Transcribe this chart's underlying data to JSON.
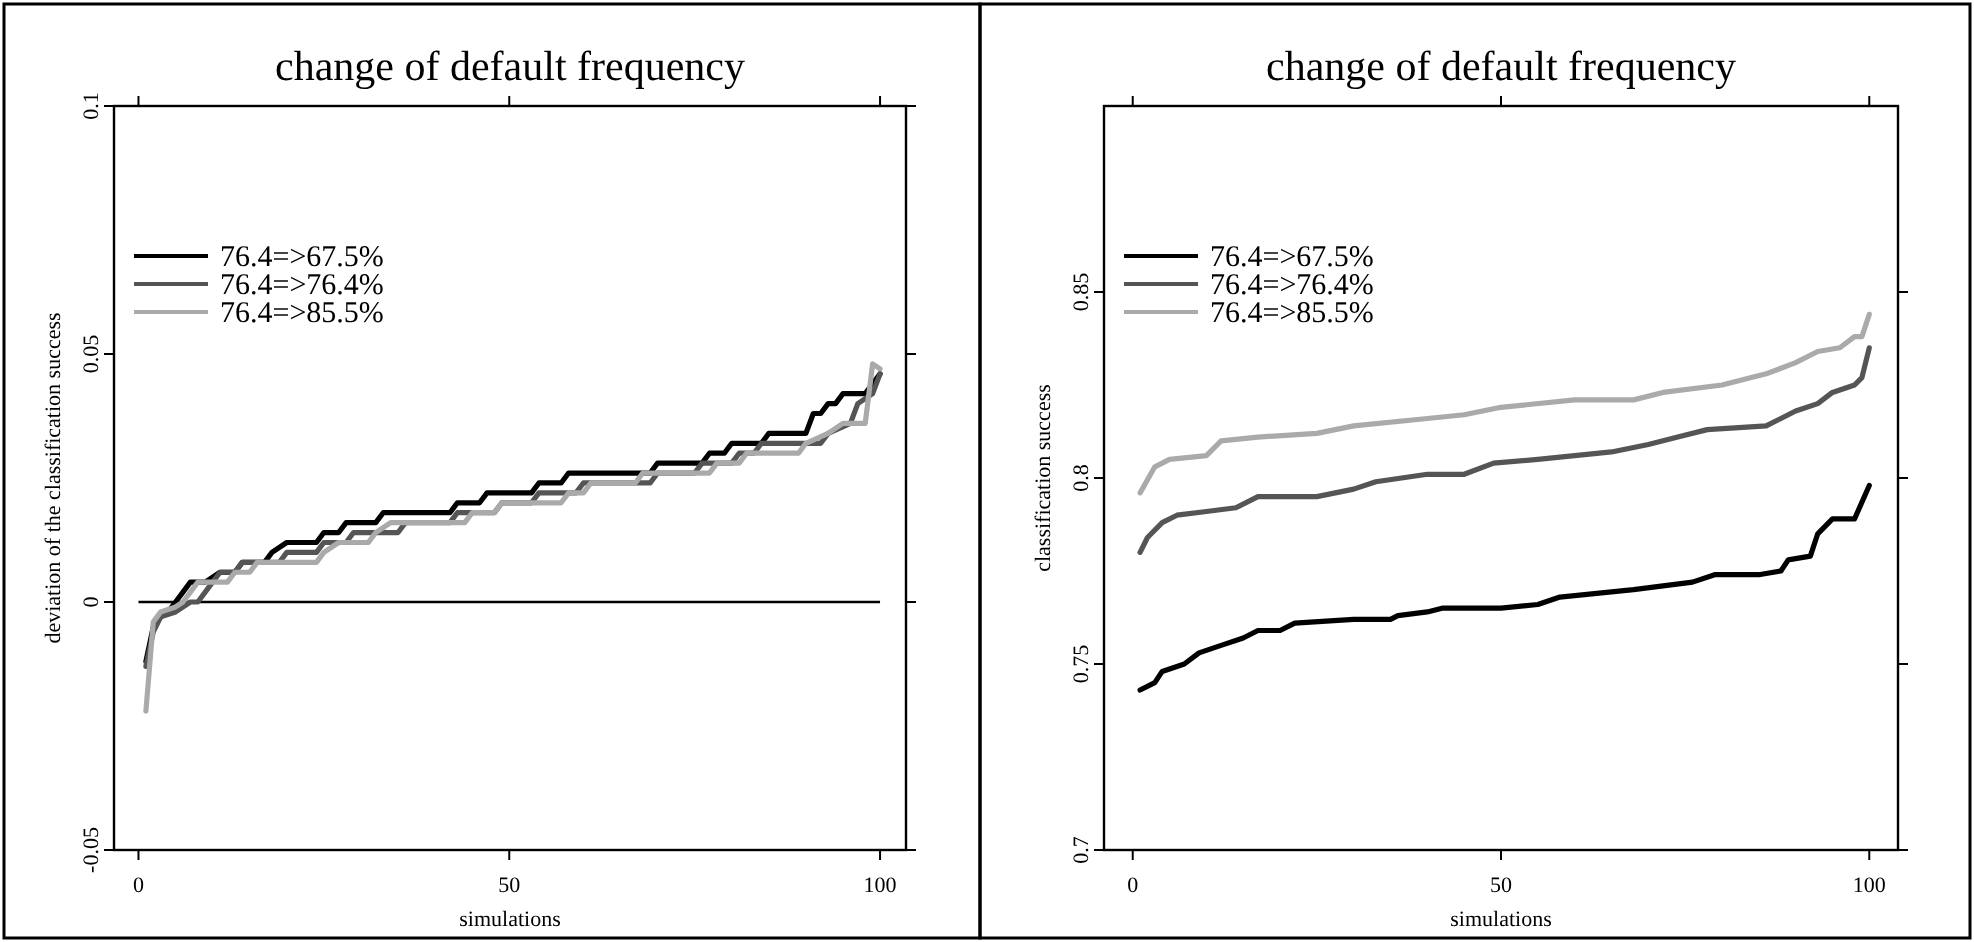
{
  "chart_data": [
    {
      "type": "line",
      "title": "change of default frequency",
      "xlabel": "simulations",
      "ylabel": "deviation of the classification success",
      "xlim": [
        -3.3,
        103.5
      ],
      "xticks": [
        0,
        50,
        100
      ],
      "ylim": [
        -0.05,
        0.1
      ],
      "yticks": [
        -0.05,
        0,
        0.05,
        0.1
      ],
      "legend": "top left",
      "ref_lines": [
        {
          "axis": "y",
          "value": 0,
          "color": "#000000"
        }
      ],
      "series": [
        {
          "name": "76.4=>67.5%",
          "color": "#000000",
          "x": [
            1,
            2,
            3,
            4,
            5,
            6,
            7,
            9,
            10,
            11,
            13,
            14,
            17,
            18,
            20,
            24,
            25,
            27,
            28,
            32,
            33,
            42,
            43,
            46,
            47,
            53,
            54,
            57,
            58,
            69,
            70,
            76,
            77,
            79,
            80,
            84,
            85,
            90,
            91,
            92,
            93,
            94,
            95,
            98,
            100
          ],
          "values": [
            -0.012,
            -0.005,
            -0.003,
            -0.002,
            0.0,
            0.002,
            0.004,
            0.004,
            0.005,
            0.006,
            0.006,
            0.008,
            0.008,
            0.01,
            0.012,
            0.012,
            0.014,
            0.014,
            0.016,
            0.016,
            0.018,
            0.018,
            0.02,
            0.02,
            0.022,
            0.022,
            0.024,
            0.024,
            0.026,
            0.026,
            0.028,
            0.028,
            0.03,
            0.03,
            0.032,
            0.032,
            0.034,
            0.034,
            0.038,
            0.038,
            0.04,
            0.04,
            0.042,
            0.042,
            0.046
          ]
        },
        {
          "name": "76.4=>76.4%",
          "color": "#555555",
          "x": [
            1,
            2,
            3,
            5,
            7,
            8,
            9,
            10,
            11,
            13,
            14,
            19,
            20,
            24,
            25,
            28,
            29,
            35,
            36,
            42,
            43,
            48,
            49,
            53,
            54,
            59,
            60,
            69,
            70,
            75,
            76,
            80,
            81,
            83,
            84,
            92,
            93,
            96,
            97,
            99,
            100
          ],
          "values": [
            -0.013,
            -0.006,
            -0.003,
            -0.002,
            0.0,
            0.0,
            0.002,
            0.004,
            0.006,
            0.006,
            0.008,
            0.008,
            0.01,
            0.01,
            0.012,
            0.012,
            0.014,
            0.014,
            0.016,
            0.016,
            0.018,
            0.018,
            0.02,
            0.02,
            0.022,
            0.022,
            0.024,
            0.024,
            0.026,
            0.026,
            0.028,
            0.028,
            0.03,
            0.03,
            0.032,
            0.032,
            0.034,
            0.036,
            0.04,
            0.042,
            0.046
          ]
        },
        {
          "name": "76.4=>85.5%",
          "color": "#aaaaaa",
          "x": [
            1,
            2,
            3,
            5,
            6,
            7,
            8,
            12,
            13,
            15,
            16,
            24,
            25,
            27,
            31,
            32,
            34,
            44,
            45,
            48,
            49,
            57,
            58,
            60,
            61,
            67,
            68,
            77,
            78,
            81,
            82,
            89,
            90,
            93,
            95,
            98,
            99,
            100
          ],
          "values": [
            -0.022,
            -0.004,
            -0.002,
            -0.001,
            0.0,
            0.002,
            0.004,
            0.004,
            0.006,
            0.006,
            0.008,
            0.008,
            0.01,
            0.012,
            0.012,
            0.014,
            0.016,
            0.016,
            0.018,
            0.018,
            0.02,
            0.02,
            0.022,
            0.022,
            0.024,
            0.024,
            0.026,
            0.026,
            0.028,
            0.028,
            0.03,
            0.03,
            0.032,
            0.034,
            0.036,
            0.036,
            0.048,
            0.047
          ]
        }
      ]
    },
    {
      "type": "line",
      "title": "change of default frequency",
      "xlabel": "simulations",
      "ylabel": "classification success",
      "xlim": [
        -3.9,
        103.9
      ],
      "xticks": [
        0,
        50,
        100
      ],
      "ylim": [
        0.7,
        0.9
      ],
      "yticks": [
        0.7,
        0.75,
        0.8,
        0.85
      ],
      "legend": "top left",
      "series": [
        {
          "name": "76.4=>67.5%",
          "color": "#000000",
          "x": [
            1,
            3,
            4,
            7,
            9,
            12,
            15,
            17,
            20,
            22,
            30,
            35,
            36,
            40,
            42,
            50,
            55,
            58,
            63,
            68,
            72,
            76,
            79,
            85,
            88,
            89,
            92,
            93,
            95,
            98,
            100
          ],
          "values": [
            0.743,
            0.745,
            0.748,
            0.75,
            0.753,
            0.755,
            0.757,
            0.759,
            0.759,
            0.761,
            0.762,
            0.762,
            0.763,
            0.764,
            0.765,
            0.765,
            0.766,
            0.768,
            0.769,
            0.77,
            0.771,
            0.772,
            0.774,
            0.774,
            0.775,
            0.778,
            0.779,
            0.785,
            0.789,
            0.789,
            0.798
          ]
        },
        {
          "name": "76.4=>76.4%",
          "color": "#555555",
          "x": [
            1,
            2,
            4,
            6,
            10,
            14,
            17,
            25,
            30,
            33,
            40,
            45,
            49,
            55,
            60,
            65,
            70,
            74,
            78,
            86,
            88,
            90,
            93,
            95,
            98,
            99,
            100
          ],
          "values": [
            0.78,
            0.784,
            0.788,
            0.79,
            0.791,
            0.792,
            0.795,
            0.795,
            0.797,
            0.799,
            0.801,
            0.801,
            0.804,
            0.805,
            0.806,
            0.807,
            0.809,
            0.811,
            0.813,
            0.814,
            0.816,
            0.818,
            0.82,
            0.823,
            0.825,
            0.827,
            0.835
          ]
        },
        {
          "name": "76.4=>85.5%",
          "color": "#aaaaaa",
          "x": [
            1,
            3,
            5,
            10,
            12,
            17,
            25,
            30,
            40,
            45,
            50,
            60,
            68,
            72,
            80,
            86,
            90,
            93,
            96,
            98,
            99,
            100
          ],
          "values": [
            0.796,
            0.803,
            0.805,
            0.806,
            0.81,
            0.811,
            0.812,
            0.814,
            0.816,
            0.817,
            0.819,
            0.821,
            0.821,
            0.823,
            0.825,
            0.828,
            0.831,
            0.834,
            0.835,
            0.838,
            0.838,
            0.844
          ]
        }
      ]
    }
  ]
}
